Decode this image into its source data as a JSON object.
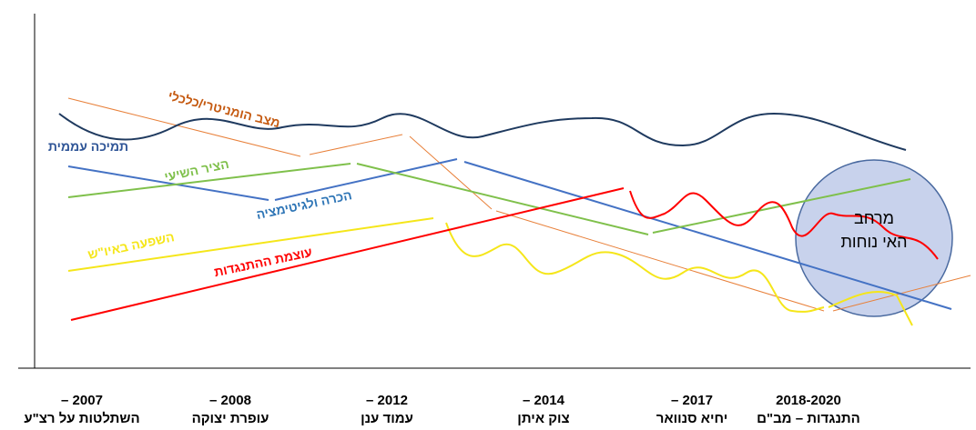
{
  "series_labels": {
    "humanitarian": "מצב הומניטרי/כלכלי",
    "popular_support": "תמיכה עממית",
    "shia_axis": "הציר השיעי",
    "recognition": "הכרה ולגיטימציה",
    "west_bank": "השפעה באיו\"ש",
    "resistance": "עוצמת ההתנגדות"
  },
  "discomfort_zone": {
    "line1": "מרחב",
    "line2": "האי נוחות"
  },
  "timeline": [
    {
      "year": "– 2007",
      "event": "השתלטות על רצ\"ע"
    },
    {
      "year": "– 2008",
      "event": "עופרת יצוקה"
    },
    {
      "year": "– 2012",
      "event": "עמוד ענן"
    },
    {
      "year": "– 2014",
      "event": "צוק איתן"
    },
    {
      "year": "– 2017",
      "event": "יחיא סנוואר"
    },
    {
      "year": "2018-2020",
      "event": "התנגדות – מב\"ם"
    }
  ]
}
